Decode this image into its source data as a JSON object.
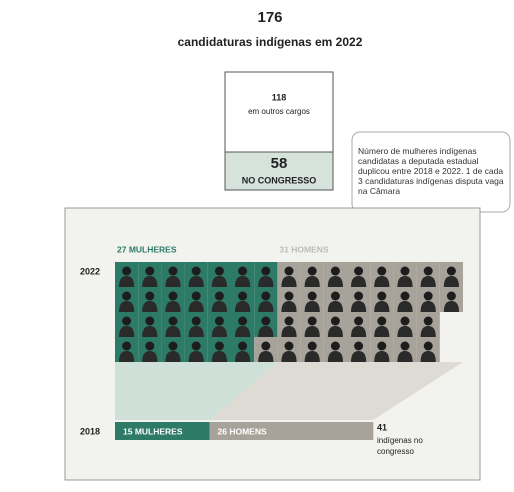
{
  "header": {
    "total": "176",
    "subtitle": "candidaturas indígenas em 2022"
  },
  "split": {
    "others_value": "118",
    "others_label": "em outros cargos",
    "congress_value": "58",
    "congress_label": "NO CONGRESSO"
  },
  "note": "Número de mulheres indígenas candidatas a deputada estadual duplicou entre 2018 e 2022. 1 de cada 3 candidaturas indígenas disputa vaga na Câmara",
  "year_2022": {
    "year": "2022",
    "women": 27,
    "women_label": "27 MULHERES",
    "men": 31,
    "men_label": "31 HOMENS"
  },
  "year_2018": {
    "year": "2018",
    "women": 15,
    "women_label": "15 MULHERES",
    "men": 26,
    "men_label": "26 HOMENS",
    "total": "41",
    "total_label": "indígenas no congresso"
  }
}
